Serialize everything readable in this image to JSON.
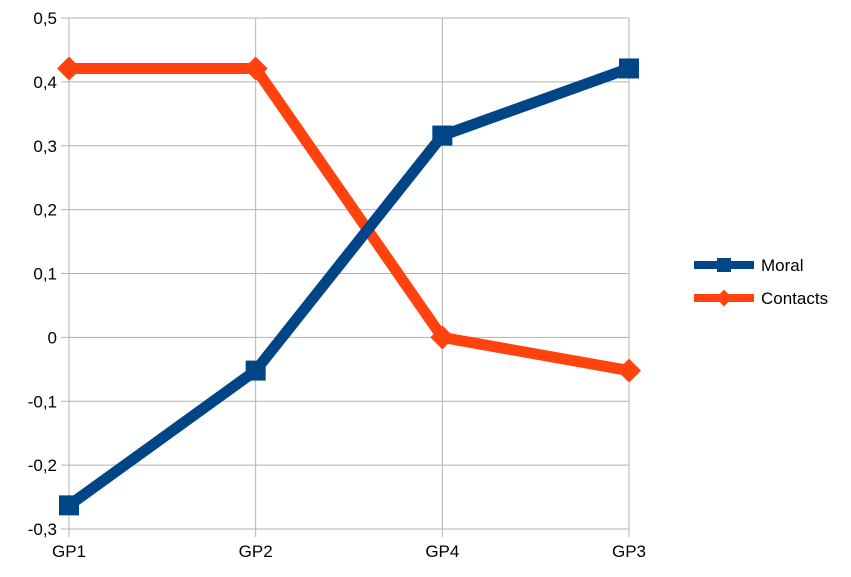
{
  "chart_data": {
    "type": "line",
    "categories": [
      "GP1",
      "GP2",
      "GP4",
      "GP3"
    ],
    "series": [
      {
        "name": "Moral",
        "values": [
          -0.263,
          -0.052,
          0.316,
          0.421
        ],
        "color": "#004586",
        "marker": "square"
      },
      {
        "name": "Contacts",
        "values": [
          0.421,
          0.421,
          0.0,
          -0.052
        ],
        "color": "#ff420e",
        "marker": "diamond"
      }
    ],
    "y_ticks": [
      "0,5",
      "0,4",
      "0,3",
      "0,2",
      "0,1",
      "0",
      "-0,1",
      "-0,2",
      "-0,3"
    ],
    "ylim": [
      -0.3,
      0.5
    ],
    "grid": true,
    "legend_position": "right"
  }
}
